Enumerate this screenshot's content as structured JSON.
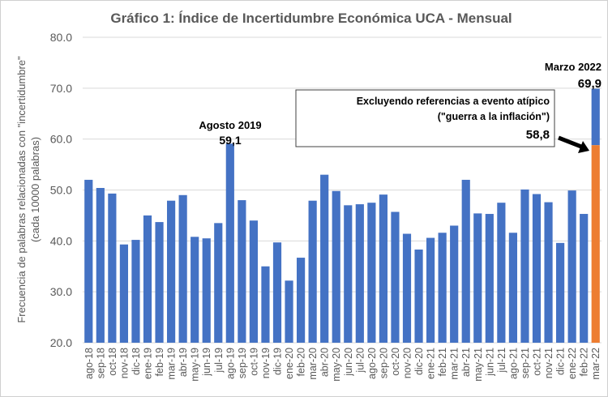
{
  "chart_data": {
    "type": "bar",
    "title": "Gráfico 1: Índice de Incertidumbre Económica UCA - Mensual",
    "ylabel_line1": "Frecuencia de palabras relacionadas con \"incertidumbre\"",
    "ylabel_line2": "(cada 10000 palabras)",
    "ylim": [
      20,
      80
    ],
    "yticks": [
      "20.0",
      "30.0",
      "40.0",
      "50.0",
      "60.0",
      "70.0",
      "80.0"
    ],
    "grid": true,
    "categories": [
      "ago-18",
      "sep-18",
      "oct-18",
      "nov-18",
      "dic-18",
      "ene-19",
      "feb-19",
      "mar-19",
      "abr-19",
      "may-19",
      "jun-19",
      "jul-19",
      "ago-19",
      "sep-19",
      "oct-19",
      "nov-19",
      "dic-19",
      "ene-20",
      "feb-20",
      "mar-20",
      "abr-20",
      "may-20",
      "jun-20",
      "jul-20",
      "ago-20",
      "sep-20",
      "oct-20",
      "nov-20",
      "dic-20",
      "ene-21",
      "feb-21",
      "mar-21",
      "abr-21",
      "may-21",
      "jun-21",
      "jul-21",
      "ago-21",
      "sep-21",
      "oct-21",
      "nov-21",
      "dic-21",
      "ene-22",
      "feb-22",
      "mar-22"
    ],
    "values": [
      52.0,
      50.4,
      49.3,
      39.3,
      40.2,
      45.0,
      43.7,
      47.9,
      49.0,
      40.8,
      40.5,
      43.5,
      59.1,
      48.0,
      44.0,
      35.0,
      39.7,
      32.2,
      36.7,
      47.9,
      53.0,
      49.8,
      47.0,
      47.2,
      47.5,
      49.1,
      45.7,
      41.4,
      38.3,
      40.6,
      41.6,
      43.0,
      52.0,
      45.4,
      45.3,
      47.5,
      41.6,
      50.1,
      49.2,
      47.6,
      39.6,
      49.9,
      45.3,
      69.9
    ],
    "excluded_value_last": 58.8,
    "colors": {
      "bar": "#4472C4",
      "excluded": "#ED7D31",
      "grid": "#D9D9D9",
      "text": "#595959"
    },
    "annotations": {
      "aug2019_label": "Agosto 2019",
      "aug2019_value": "59,1",
      "mar2022_label": "Marzo 2022",
      "mar2022_value": "69,9",
      "box_line1": "Excluyendo referencias a evento atípico",
      "box_line2": "(\"guerra a la inflación\")",
      "box_value": "58,8"
    }
  }
}
